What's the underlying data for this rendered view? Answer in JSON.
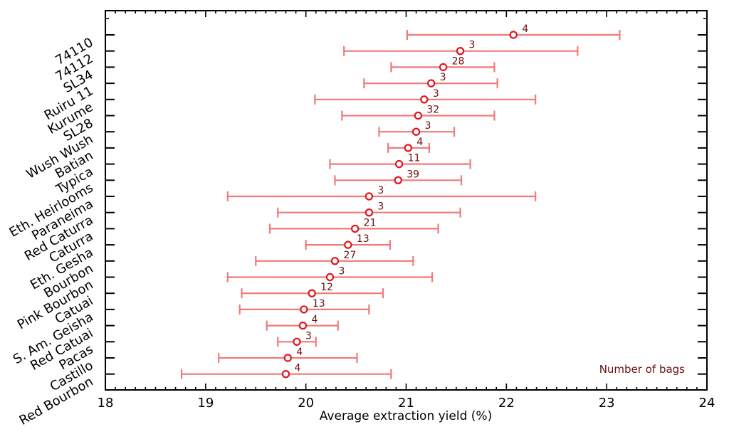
{
  "chart_data": {
    "type": "errorbar",
    "title": "",
    "xlabel": "Average extraction yield (%)",
    "ylabel": "",
    "xlim": [
      18,
      24
    ],
    "xticks": [
      "18",
      "19",
      "20",
      "21",
      "22",
      "23",
      "24"
    ],
    "x_minor_step": 0.1,
    "grid": false,
    "annotation": "Number of bags",
    "annotation_position": "bottom-right",
    "colors": {
      "errorbar": "#f07a7a",
      "marker_edge": "#e0161e",
      "marker_face": "#ffffff",
      "count_text": "#6b1010",
      "axis": "#000000"
    },
    "categories": [
      "74110",
      "74112",
      "SL34",
      "Ruiru 11",
      "Kurume",
      "SL28",
      "Wush Wush",
      "Batian",
      "Typica",
      "Eth. Heirlooms",
      "Paraneima",
      "Red Caturra",
      "Caturra",
      "Eth. Gesha",
      "Bourbon",
      "Pink Bourbon",
      "Catuai",
      "S. Am. Geisha",
      "Red Catuai",
      "Pacas",
      "Castillo",
      "Red Bourbon"
    ],
    "series": [
      {
        "name": "Average extraction yield",
        "values": [
          22.07,
          21.54,
          21.37,
          21.25,
          21.18,
          21.12,
          21.1,
          21.02,
          20.93,
          20.92,
          20.63,
          20.63,
          20.49,
          20.42,
          20.29,
          20.24,
          20.06,
          19.98,
          19.97,
          19.91,
          19.82,
          19.8
        ],
        "lower": [
          21.01,
          20.38,
          20.85,
          20.58,
          20.09,
          20.36,
          20.73,
          20.82,
          20.24,
          20.29,
          19.22,
          19.72,
          19.64,
          20.0,
          19.5,
          19.22,
          19.36,
          19.34,
          19.61,
          19.72,
          19.13,
          18.76
        ],
        "upper": [
          23.13,
          22.71,
          21.88,
          21.91,
          22.29,
          21.88,
          21.48,
          21.23,
          21.64,
          21.55,
          22.29,
          21.54,
          21.32,
          20.84,
          21.07,
          21.26,
          20.77,
          20.63,
          20.32,
          20.1,
          20.51,
          20.85
        ],
        "counts": [
          "4",
          "3",
          "28",
          "3",
          "3",
          "32",
          "3",
          "4",
          "11",
          "39",
          "3",
          "3",
          "21",
          "13",
          "27",
          "3",
          "12",
          "13",
          "4",
          "3",
          "4",
          "4"
        ]
      }
    ]
  }
}
